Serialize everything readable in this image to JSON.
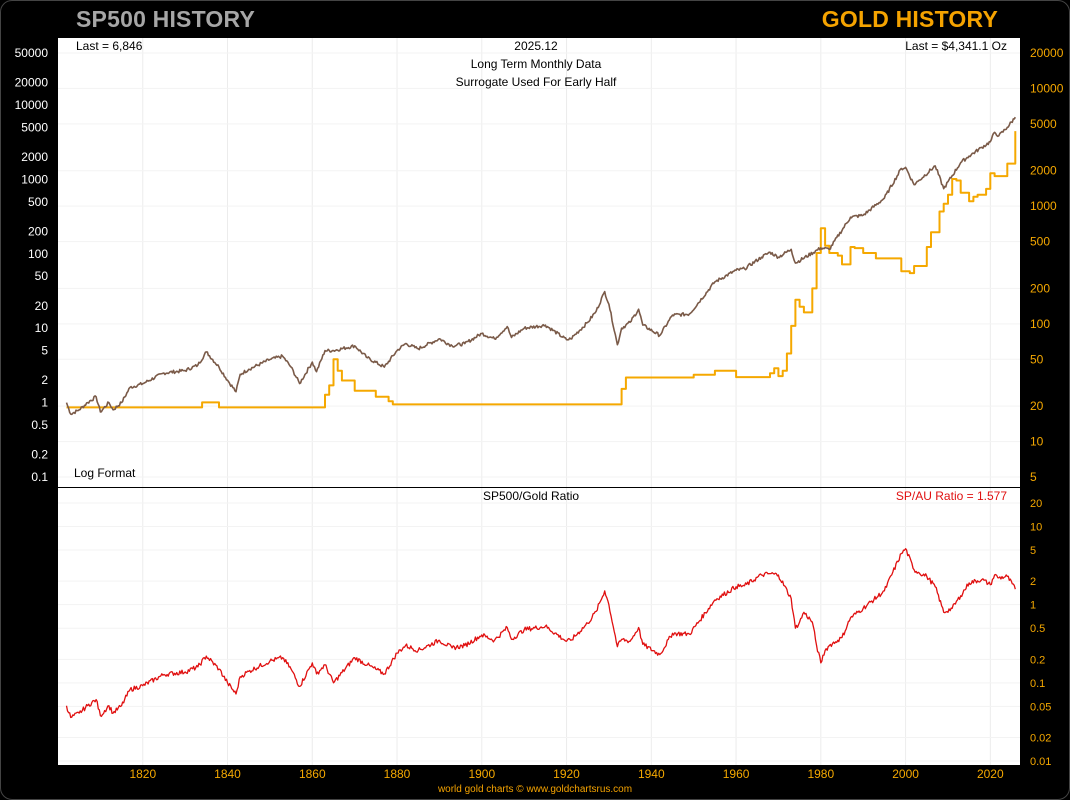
{
  "header": {
    "left_title": "SP500 HISTORY",
    "right_title": "GOLD HISTORY"
  },
  "colors": {
    "sp500": "#7a5a48",
    "gold": "#f5a800",
    "ratio": "#e01010",
    "background": "#000000",
    "panel": "#ffffff"
  },
  "top_panel": {
    "last_sp500": "Last = 6,846",
    "date": "2025.12",
    "subtitle1": "Long Term Monthly Data",
    "subtitle2": "Surrogate Used For Early Half",
    "last_gold": "Last = $4,341.1 Oz",
    "scale_note": "Log Format"
  },
  "bottom_panel": {
    "title": "SP500/Gold Ratio",
    "last_ratio": "SP/AU Ratio = 1.577"
  },
  "footer": "world gold charts © www.goldchartsrus.com",
  "chart_data": [
    {
      "type": "line",
      "title": "SP500 HISTORY / GOLD HISTORY",
      "scale": "log",
      "x_range": [
        1800,
        2027
      ],
      "x_ticks": [
        "1820",
        "1840",
        "1860",
        "1880",
        "1900",
        "1920",
        "1940",
        "1960",
        "1980",
        "2000",
        "2020"
      ],
      "left_axis": {
        "label": "SP500",
        "ticks": [
          "50000",
          "20000",
          "10000",
          "5000",
          "2000",
          "1000",
          "500",
          "200",
          "100",
          "50",
          "20",
          "10",
          "5",
          "2",
          "1",
          "0.5",
          "0.2",
          "0.1"
        ],
        "range": [
          0.1,
          50000
        ]
      },
      "right_axis": {
        "label": "Gold",
        "ticks": [
          "20000",
          "10000",
          "5000",
          "2000",
          "1000",
          "500",
          "200",
          "100",
          "50",
          "20",
          "10",
          "5"
        ],
        "range": [
          5,
          20000
        ]
      },
      "series": [
        {
          "name": "SP500",
          "axis": "left",
          "x": [
            1802,
            1803,
            1805,
            1807,
            1809,
            1810,
            1812,
            1813,
            1815,
            1817,
            1820,
            1825,
            1830,
            1833,
            1835,
            1838,
            1840,
            1842,
            1843,
            1845,
            1850,
            1853,
            1855,
            1857,
            1860,
            1861,
            1863,
            1865,
            1870,
            1873,
            1877,
            1880,
            1882,
            1885,
            1890,
            1893,
            1896,
            1900,
            1903,
            1906,
            1907,
            1910,
            1915,
            1920,
            1921,
            1925,
            1927,
            1929,
            1930,
            1932,
            1933,
            1935,
            1937,
            1938,
            1942,
            1945,
            1949,
            1955,
            1960,
            1962,
            1966,
            1968,
            1970,
            1973,
            1974,
            1980,
            1982,
            1987,
            1990,
            1995,
            1999,
            2000,
            2002,
            2003,
            2007,
            2009,
            2013,
            2015,
            2018,
            2020,
            2021,
            2022,
            2024,
            2025.9
          ],
          "values": [
            1.0,
            0.7,
            0.8,
            1.0,
            1.2,
            0.75,
            1.0,
            0.8,
            1.0,
            1.6,
            1.8,
            2.5,
            2.7,
            3.2,
            4.8,
            3.0,
            2.0,
            1.4,
            2.4,
            2.8,
            3.8,
            4.2,
            3.0,
            1.8,
            3.5,
            2.6,
            5.0,
            5.0,
            5.8,
            4.0,
            3.0,
            5.0,
            6.2,
            5.3,
            7.2,
            5.8,
            6.2,
            8.5,
            7.2,
            10.5,
            7.5,
            10.0,
            11.0,
            7.0,
            7.2,
            12.0,
            17.0,
            31.0,
            21.0,
            6.0,
            10.0,
            12.0,
            18.0,
            11.0,
            8.0,
            15.0,
            15.5,
            42,
            60,
            63,
            90,
            105,
            90,
            115,
            75,
            120,
            115,
            310,
            330,
            560,
            1400,
            1450,
            850,
            950,
            1520,
            750,
            1680,
            2060,
            2700,
            3200,
            4300,
            3850,
            5000,
            6846
          ]
        },
        {
          "name": "Gold",
          "axis": "right",
          "x": [
            1802,
            1833,
            1834,
            1836,
            1838,
            1843,
            1862,
            1863,
            1864,
            1865,
            1866,
            1867,
            1870,
            1875,
            1878,
            1879,
            1880,
            1900,
            1932,
            1933,
            1934,
            1940,
            1945,
            1950,
            1955,
            1960,
            1968,
            1969,
            1970,
            1971,
            1972,
            1973,
            1974,
            1975,
            1976,
            1978,
            1979,
            1980,
            1981,
            1982,
            1984,
            1985,
            1987,
            1988,
            1990,
            1993,
            1996,
            1999,
            2001,
            2002,
            2005,
            2006,
            2008,
            2009,
            2010,
            2011,
            2012,
            2013,
            2015,
            2016,
            2017,
            2019,
            2020,
            2021,
            2022,
            2024,
            2025.9
          ],
          "values": [
            19.5,
            19.5,
            21.5,
            21.5,
            19.5,
            19.5,
            19.5,
            25,
            30,
            50,
            40,
            33,
            27,
            24,
            22,
            20.67,
            20.67,
            20.67,
            20.67,
            28,
            35,
            35,
            35,
            37,
            40,
            35.3,
            38,
            42,
            36,
            40,
            56,
            96,
            160,
            140,
            125,
            200,
            400,
            650,
            460,
            400,
            380,
            320,
            450,
            440,
            400,
            360,
            360,
            280,
            270,
            310,
            450,
            600,
            900,
            1050,
            1250,
            1700,
            1650,
            1300,
            1100,
            1200,
            1250,
            1400,
            1900,
            1800,
            1800,
            2300,
            4341.1
          ]
        }
      ]
    },
    {
      "type": "line",
      "title": "SP500/Gold Ratio",
      "scale": "log",
      "x_range": [
        1800,
        2027
      ],
      "right_axis": {
        "ticks": [
          "20",
          "10",
          "5",
          "2",
          "1",
          "0.5",
          "0.2",
          "0.1",
          "0.05",
          "0.02",
          "0.01"
        ],
        "range": [
          0.01,
          20
        ]
      },
      "series": [
        {
          "name": "SP/AU Ratio",
          "x": [
            1802,
            1803,
            1805,
            1807,
            1809,
            1810,
            1812,
            1813,
            1815,
            1817,
            1820,
            1825,
            1830,
            1833,
            1835,
            1838,
            1840,
            1842,
            1843,
            1845,
            1850,
            1853,
            1855,
            1857,
            1860,
            1861,
            1863,
            1865,
            1870,
            1873,
            1877,
            1880,
            1882,
            1885,
            1890,
            1893,
            1896,
            1900,
            1903,
            1906,
            1907,
            1910,
            1915,
            1920,
            1921,
            1925,
            1927,
            1929,
            1930,
            1932,
            1933,
            1935,
            1937,
            1938,
            1942,
            1945,
            1949,
            1955,
            1960,
            1962,
            1966,
            1968,
            1970,
            1973,
            1974,
            1975,
            1976,
            1978,
            1979,
            1980,
            1981,
            1982,
            1984,
            1985,
            1987,
            1990,
            1995,
            1999,
            2000,
            2002,
            2003,
            2005,
            2007,
            2009,
            2011,
            2013,
            2015,
            2018,
            2020,
            2021,
            2022,
            2024,
            2025.9
          ],
          "values": [
            0.051,
            0.036,
            0.041,
            0.051,
            0.061,
            0.038,
            0.051,
            0.041,
            0.051,
            0.082,
            0.092,
            0.128,
            0.138,
            0.16,
            0.22,
            0.15,
            0.1,
            0.072,
            0.12,
            0.14,
            0.19,
            0.21,
            0.15,
            0.09,
            0.18,
            0.13,
            0.17,
            0.1,
            0.21,
            0.17,
            0.13,
            0.24,
            0.3,
            0.26,
            0.35,
            0.28,
            0.3,
            0.41,
            0.35,
            0.51,
            0.36,
            0.48,
            0.53,
            0.34,
            0.35,
            0.58,
            0.82,
            1.5,
            1.0,
            0.29,
            0.36,
            0.34,
            0.51,
            0.31,
            0.23,
            0.43,
            0.42,
            1.15,
            1.7,
            1.75,
            2.4,
            2.5,
            2.4,
            1.2,
            0.5,
            0.6,
            0.8,
            0.6,
            0.3,
            0.18,
            0.26,
            0.3,
            0.35,
            0.38,
            0.68,
            0.9,
            1.5,
            4.5,
            5.2,
            2.8,
            2.6,
            2.3,
            1.7,
            0.8,
            0.9,
            1.3,
            1.9,
            2.1,
            1.8,
            2.4,
            2.2,
            2.3,
            1.577
          ]
        }
      ]
    }
  ]
}
